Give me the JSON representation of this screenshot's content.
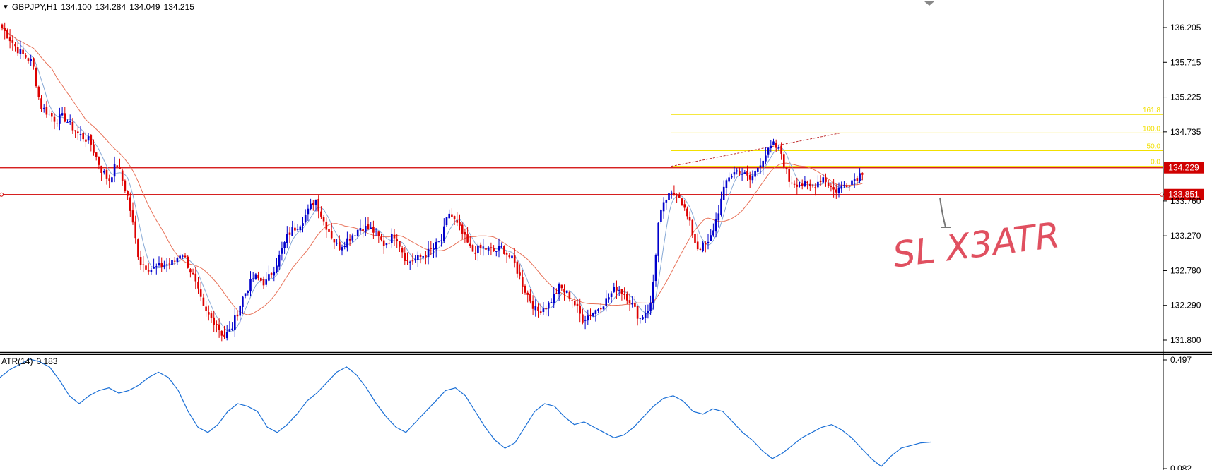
{
  "header": {
    "symbol_timeframe": "GBPJPY,H1",
    "open": "134.100",
    "high": "134.284",
    "low": "134.049",
    "close": "134.215"
  },
  "price_axis": {
    "ticks": [
      "136.205",
      "135.715",
      "135.225",
      "134.735",
      "133.760",
      "133.270",
      "132.780",
      "132.290",
      "131.800"
    ],
    "levels": [
      {
        "name": "resistance",
        "value": "134.229",
        "color": "#d00000"
      },
      {
        "name": "support",
        "value": "133.851",
        "color": "#d00000"
      }
    ]
  },
  "fibonacci": {
    "color": "#f2e000",
    "levels": [
      {
        "label": "161.8",
        "value": 134.98
      },
      {
        "label": "100.0",
        "value": 134.72
      },
      {
        "label": "50.0",
        "value": 134.47
      },
      {
        "label": "0.0",
        "value": 134.25
      }
    ]
  },
  "annotation": {
    "text": "SL X3ATR",
    "color": "#e05060"
  },
  "atr": {
    "label": "ATR(14)",
    "value": "0.183",
    "axis_ticks": [
      "0.497",
      "0.082"
    ],
    "color": "#1a6fd6"
  },
  "chart_data": [
    {
      "type": "candlestick",
      "title": "GBPJPY,H1",
      "ylim": [
        131.7,
        136.5
      ],
      "y_ticks": [
        136.205,
        135.715,
        135.225,
        134.735,
        133.76,
        133.27,
        132.78,
        132.29,
        131.8
      ],
      "colors": {
        "up": "#0000cc",
        "down": "#dd0000",
        "ma_fast": "#87a9d6",
        "ma_slow": "#e8735a"
      },
      "close_path": [
        [
          0,
          136.2
        ],
        [
          4,
          135.9
        ],
        [
          8,
          135.7
        ],
        [
          10,
          135.1
        ],
        [
          14,
          134.9
        ],
        [
          16,
          134.95
        ],
        [
          20,
          134.7
        ],
        [
          23,
          134.6
        ],
        [
          26,
          134.2
        ],
        [
          28,
          134.05
        ],
        [
          30,
          134.3
        ],
        [
          33,
          133.8
        ],
        [
          36,
          132.9
        ],
        [
          39,
          132.8
        ],
        [
          42,
          132.85
        ],
        [
          45,
          132.9
        ],
        [
          47,
          133.05
        ],
        [
          50,
          132.7
        ],
        [
          53,
          132.2
        ],
        [
          56,
          132.05
        ],
        [
          58,
          131.85
        ],
        [
          60,
          131.95
        ],
        [
          63,
          132.4
        ],
        [
          66,
          132.7
        ],
        [
          69,
          132.6
        ],
        [
          72,
          132.9
        ],
        [
          75,
          133.3
        ],
        [
          78,
          133.45
        ],
        [
          80,
          133.6
        ],
        [
          82,
          133.8
        ],
        [
          84,
          133.5
        ],
        [
          86,
          133.3
        ],
        [
          88,
          133.1
        ],
        [
          91,
          133.25
        ],
        [
          94,
          133.4
        ],
        [
          97,
          133.35
        ],
        [
          100,
          133.15
        ],
        [
          103,
          133.3
        ],
        [
          106,
          132.9
        ],
        [
          109,
          132.95
        ],
        [
          112,
          133.05
        ],
        [
          115,
          133.2
        ],
        [
          117,
          133.6
        ],
        [
          120,
          133.35
        ],
        [
          123,
          133.05
        ],
        [
          126,
          133.1
        ],
        [
          129,
          133.05
        ],
        [
          131,
          133.1
        ],
        [
          134,
          132.9
        ],
        [
          137,
          132.5
        ],
        [
          140,
          132.2
        ],
        [
          143,
          132.3
        ],
        [
          146,
          132.55
        ],
        [
          149,
          132.4
        ],
        [
          152,
          132.1
        ],
        [
          155,
          132.2
        ],
        [
          158,
          132.35
        ],
        [
          161,
          132.55
        ],
        [
          164,
          132.4
        ],
        [
          167,
          132.1
        ],
        [
          170,
          132.3
        ],
        [
          172,
          133.5
        ],
        [
          174,
          133.8
        ],
        [
          177,
          133.9
        ],
        [
          180,
          133.45
        ],
        [
          182,
          133.1
        ],
        [
          185,
          133.15
        ],
        [
          187,
          133.5
        ],
        [
          190,
          134.1
        ],
        [
          193,
          134.2
        ],
        [
          196,
          134.05
        ],
        [
          199,
          134.35
        ],
        [
          202,
          134.55
        ],
        [
          204,
          134.45
        ],
        [
          206,
          134.05
        ],
        [
          209,
          134.0
        ],
        [
          212,
          133.95
        ],
        [
          215,
          134.1
        ],
        [
          218,
          133.9
        ],
        [
          221,
          134.0
        ],
        [
          224,
          134.1
        ],
        [
          226,
          134.22
        ]
      ],
      "horizontal_levels": [
        134.229,
        133.851
      ],
      "fib_levels": {
        "161.8": 134.98,
        "100.0": 134.72,
        "50.0": 134.47,
        "0.0": 134.25
      }
    },
    {
      "type": "line",
      "title": "ATR(14)",
      "current_value": 0.183,
      "ylim": [
        0.082,
        0.497
      ],
      "values": [
        0.43,
        0.46,
        0.48,
        0.5,
        0.49,
        0.47,
        0.42,
        0.36,
        0.33,
        0.36,
        0.38,
        0.39,
        0.37,
        0.38,
        0.4,
        0.43,
        0.45,
        0.43,
        0.38,
        0.3,
        0.24,
        0.22,
        0.25,
        0.3,
        0.33,
        0.32,
        0.3,
        0.24,
        0.22,
        0.25,
        0.29,
        0.34,
        0.37,
        0.41,
        0.45,
        0.47,
        0.44,
        0.39,
        0.33,
        0.28,
        0.24,
        0.22,
        0.26,
        0.3,
        0.34,
        0.38,
        0.39,
        0.36,
        0.3,
        0.24,
        0.19,
        0.16,
        0.18,
        0.24,
        0.3,
        0.33,
        0.32,
        0.28,
        0.25,
        0.26,
        0.24,
        0.22,
        0.2,
        0.21,
        0.24,
        0.28,
        0.32,
        0.35,
        0.36,
        0.34,
        0.3,
        0.29,
        0.31,
        0.3,
        0.26,
        0.22,
        0.19,
        0.15,
        0.12,
        0.14,
        0.17,
        0.2,
        0.22,
        0.24,
        0.25,
        0.23,
        0.2,
        0.16,
        0.12,
        0.09,
        0.13,
        0.16,
        0.17,
        0.18,
        0.183
      ]
    }
  ]
}
